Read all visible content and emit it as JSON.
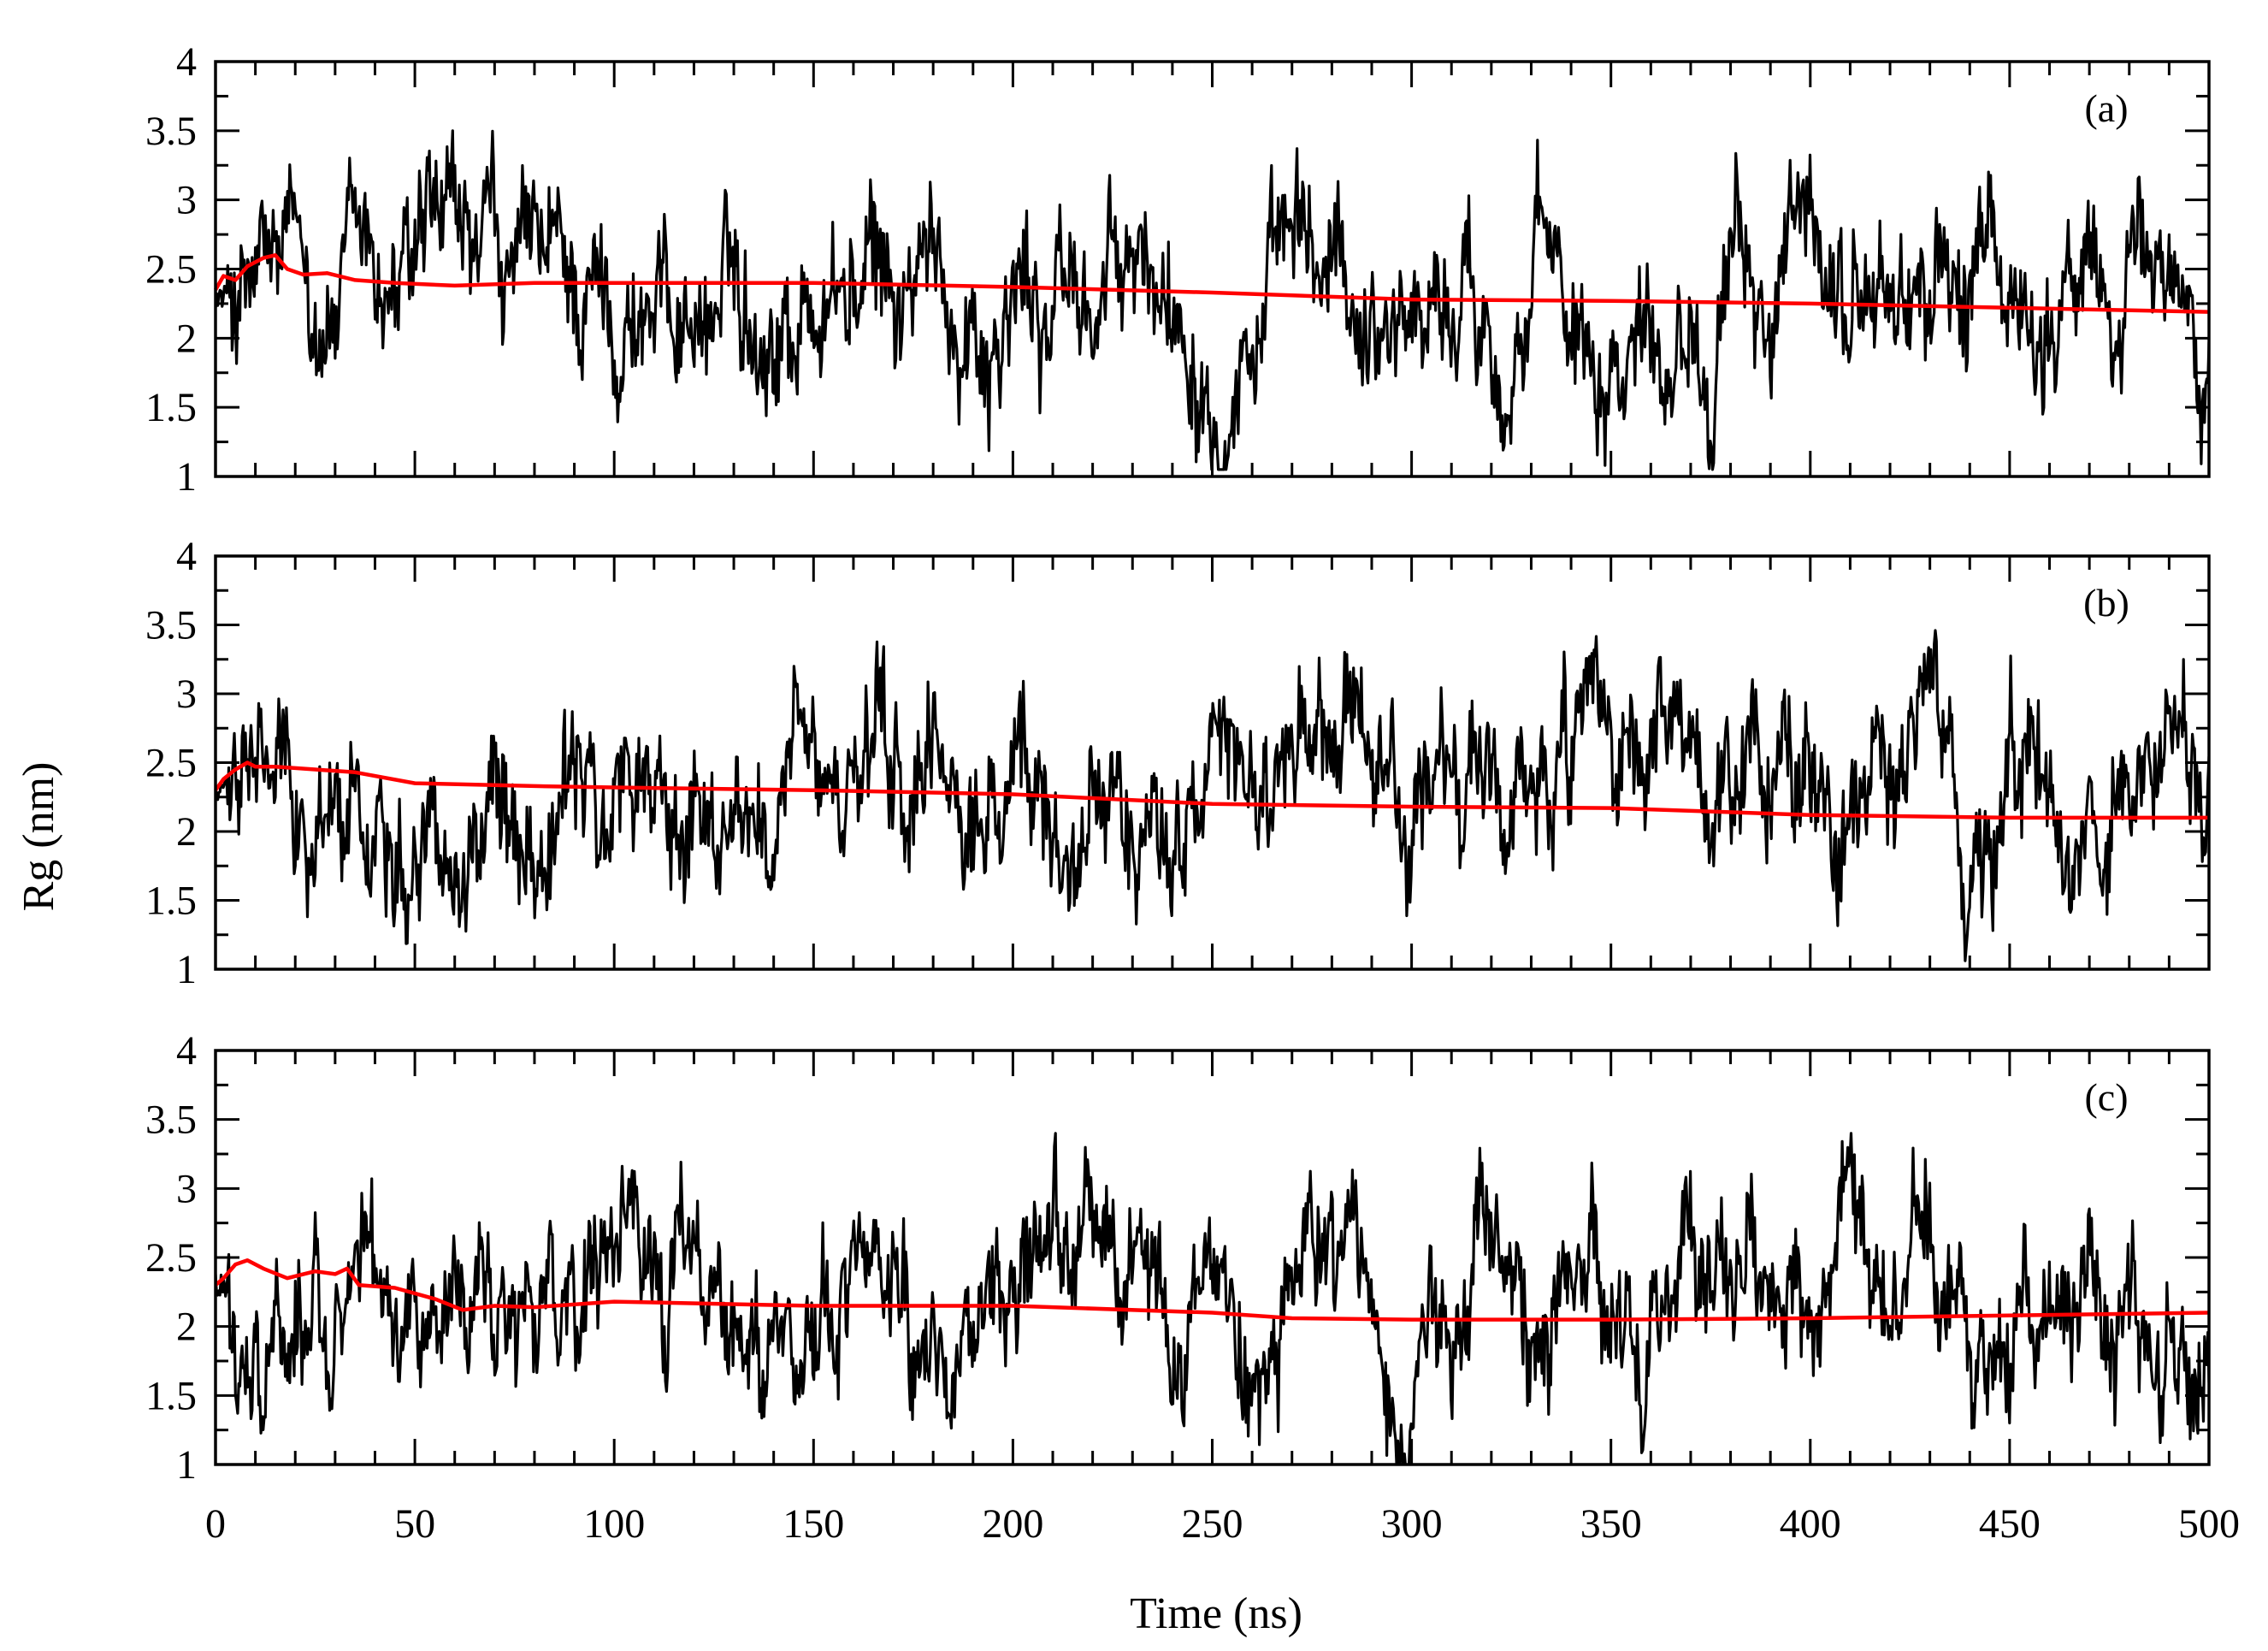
{
  "chart_data": {
    "type": "line",
    "xlabel": "Time (ns)",
    "ylabel": "Rg (nm)",
    "xlim": [
      0,
      500
    ],
    "ylim": [
      1,
      4
    ],
    "x_ticks": [
      "0",
      "50",
      "100",
      "150",
      "200",
      "250",
      "300",
      "350",
      "400",
      "450",
      "500"
    ],
    "y_ticks": [
      "1",
      "1.5",
      "2",
      "2.5",
      "3",
      "3.5",
      "4"
    ],
    "grid": false,
    "legend": "none",
    "colors": {
      "raw": "#000000",
      "average": "#ff0000"
    },
    "panels": [
      {
        "label": "(a)",
        "raw_summary": {
          "mean": 2.3,
          "min": 1.05,
          "max": 3.5
        },
        "running_average": {
          "x": [
            0,
            2,
            5,
            8,
            12,
            15,
            18,
            22,
            28,
            35,
            45,
            60,
            80,
            100,
            150,
            200,
            250,
            300,
            350,
            400,
            450,
            500
          ],
          "y": [
            2.35,
            2.45,
            2.42,
            2.52,
            2.58,
            2.6,
            2.5,
            2.46,
            2.47,
            2.42,
            2.4,
            2.38,
            2.4,
            2.4,
            2.4,
            2.37,
            2.33,
            2.28,
            2.27,
            2.25,
            2.22,
            2.19
          ]
        }
      },
      {
        "label": "(b)",
        "raw_summary": {
          "mean": 2.2,
          "min": 1.0,
          "max": 3.5
        },
        "running_average": {
          "x": [
            0,
            2,
            5,
            8,
            10,
            15,
            25,
            35,
            50,
            80,
            100,
            150,
            200,
            250,
            300,
            350,
            400,
            450,
            500
          ],
          "y": [
            2.3,
            2.38,
            2.45,
            2.5,
            2.47,
            2.47,
            2.45,
            2.43,
            2.35,
            2.33,
            2.32,
            2.3,
            2.27,
            2.2,
            2.18,
            2.17,
            2.12,
            2.1,
            2.1
          ]
        }
      },
      {
        "label": "(c)",
        "raw_summary": {
          "mean": 2.15,
          "min": 0.98,
          "max": 3.4
        },
        "running_average": {
          "x": [
            0,
            2,
            5,
            8,
            12,
            18,
            25,
            30,
            33,
            36,
            45,
            55,
            62,
            70,
            80,
            100,
            150,
            200,
            250,
            270,
            300,
            350,
            400,
            450,
            500
          ],
          "y": [
            2.3,
            2.35,
            2.45,
            2.48,
            2.42,
            2.35,
            2.4,
            2.38,
            2.42,
            2.3,
            2.28,
            2.2,
            2.12,
            2.15,
            2.14,
            2.18,
            2.15,
            2.15,
            2.1,
            2.06,
            2.05,
            2.05,
            2.06,
            2.08,
            2.1
          ]
        }
      }
    ]
  }
}
